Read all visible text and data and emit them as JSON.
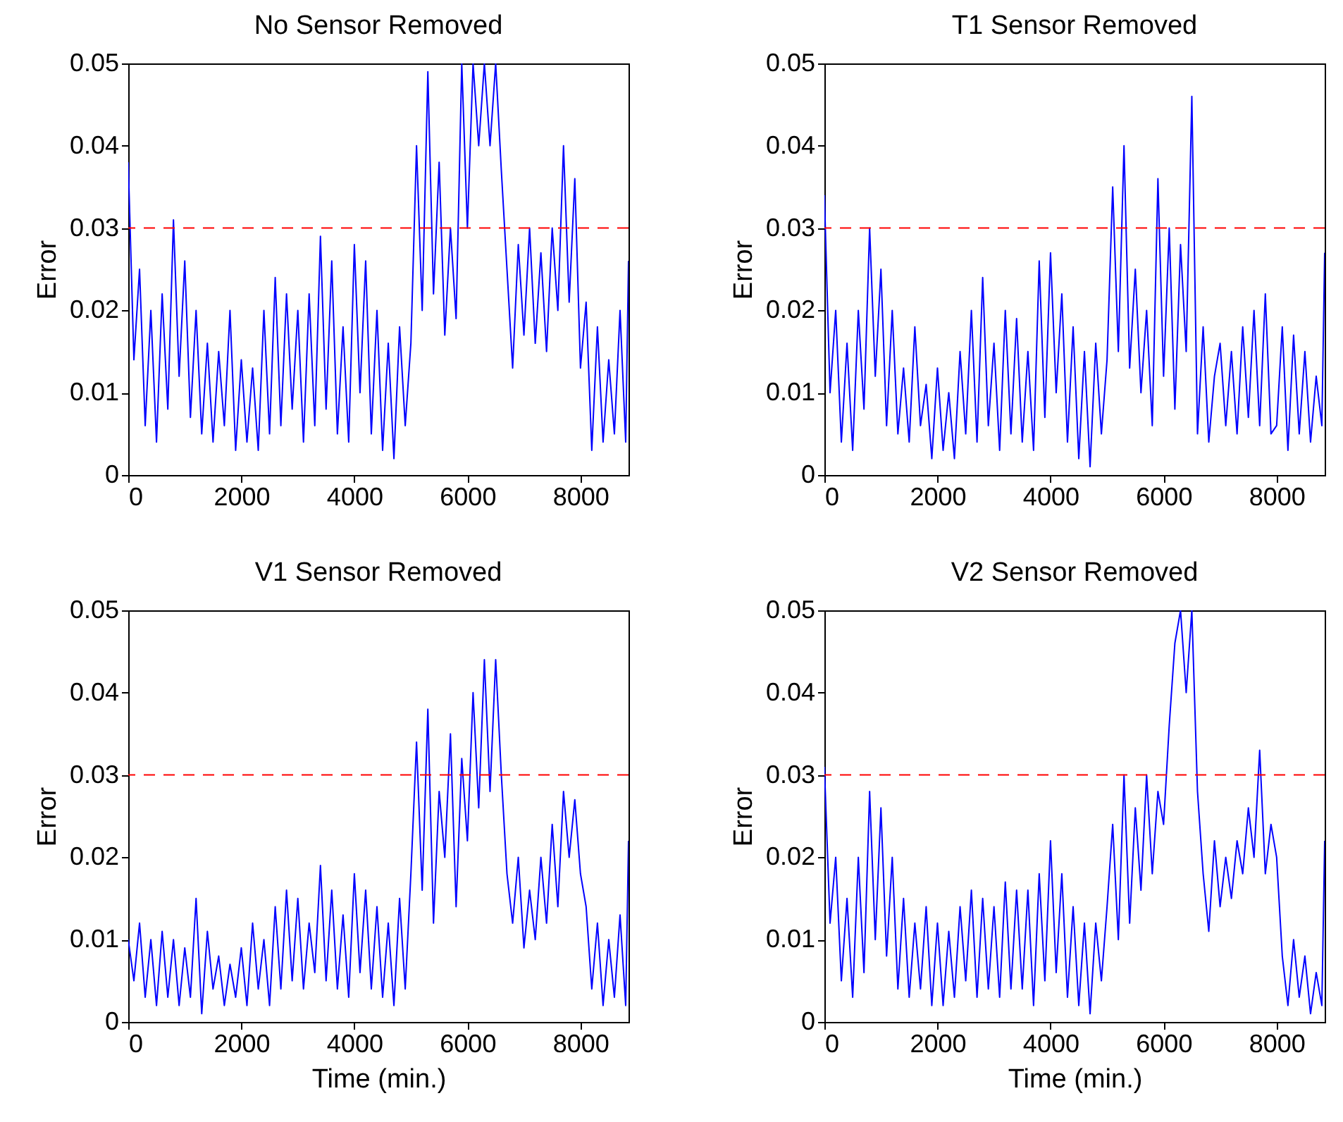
{
  "chart_data": [
    {
      "type": "line",
      "title": "No Sensor Removed",
      "ylabel": "Error",
      "x": [
        0,
        100,
        200,
        300,
        400,
        500,
        600,
        700,
        800,
        900,
        1000,
        1100,
        1200,
        1300,
        1400,
        1500,
        1600,
        1700,
        1800,
        1900,
        2000,
        2100,
        2200,
        2300,
        2400,
        2500,
        2600,
        2700,
        2800,
        2900,
        3000,
        3100,
        3200,
        3300,
        3400,
        3500,
        3600,
        3700,
        3800,
        3900,
        4000,
        4100,
        4200,
        4300,
        4400,
        4500,
        4600,
        4700,
        4800,
        4900,
        5000,
        5100,
        5200,
        5300,
        5400,
        5500,
        5600,
        5700,
        5800,
        5900,
        6000,
        6100,
        6200,
        6300,
        6400,
        6500,
        6600,
        6700,
        6800,
        6900,
        7000,
        7100,
        7200,
        7300,
        7400,
        7500,
        7600,
        7700,
        7800,
        7900,
        8000,
        8100,
        8200,
        8300,
        8400,
        8500,
        8600,
        8700,
        8800,
        8850
      ],
      "series": [
        {
          "color": "#0000ff",
          "values": [
            0.038,
            0.014,
            0.025,
            0.006,
            0.02,
            0.004,
            0.022,
            0.008,
            0.031,
            0.012,
            0.026,
            0.007,
            0.02,
            0.005,
            0.016,
            0.004,
            0.015,
            0.006,
            0.02,
            0.003,
            0.014,
            0.004,
            0.013,
            0.003,
            0.02,
            0.005,
            0.024,
            0.006,
            0.022,
            0.008,
            0.02,
            0.004,
            0.022,
            0.006,
            0.029,
            0.008,
            0.026,
            0.005,
            0.018,
            0.004,
            0.028,
            0.01,
            0.026,
            0.005,
            0.02,
            0.003,
            0.016,
            0.002,
            0.018,
            0.006,
            0.016,
            0.04,
            0.02,
            0.049,
            0.022,
            0.038,
            0.017,
            0.03,
            0.019,
            0.05,
            0.03,
            0.05,
            0.04,
            0.05,
            0.04,
            0.05,
            0.037,
            0.025,
            0.013,
            0.028,
            0.017,
            0.03,
            0.016,
            0.027,
            0.015,
            0.03,
            0.02,
            0.04,
            0.021,
            0.036,
            0.013,
            0.021,
            0.003,
            0.018,
            0.004,
            0.014,
            0.005,
            0.02,
            0.004,
            0.026
          ]
        }
      ],
      "xlim": [
        0,
        8850
      ],
      "ylim": [
        0,
        0.05
      ],
      "xticks": [
        0,
        2000,
        4000,
        6000,
        8000
      ],
      "yticks": [
        0,
        0.01,
        0.02,
        0.03,
        0.04,
        0.05
      ],
      "ref_lines": [
        {
          "axis": "y",
          "value": 0.03,
          "color": "#ff0000",
          "line_style": "dashed"
        }
      ]
    },
    {
      "type": "line",
      "title": "T1 Sensor Removed",
      "ylabel": "Error",
      "x": [
        0,
        100,
        200,
        300,
        400,
        500,
        600,
        700,
        800,
        900,
        1000,
        1100,
        1200,
        1300,
        1400,
        1500,
        1600,
        1700,
        1800,
        1900,
        2000,
        2100,
        2200,
        2300,
        2400,
        2500,
        2600,
        2700,
        2800,
        2900,
        3000,
        3100,
        3200,
        3300,
        3400,
        3500,
        3600,
        3700,
        3800,
        3900,
        4000,
        4100,
        4200,
        4300,
        4400,
        4500,
        4600,
        4700,
        4800,
        4900,
        5000,
        5100,
        5200,
        5300,
        5400,
        5500,
        5600,
        5700,
        5800,
        5900,
        6000,
        6100,
        6200,
        6300,
        6400,
        6500,
        6600,
        6700,
        6800,
        6900,
        7000,
        7100,
        7200,
        7300,
        7400,
        7500,
        7600,
        7700,
        7800,
        7900,
        8000,
        8100,
        8200,
        8300,
        8400,
        8500,
        8600,
        8700,
        8800,
        8850
      ],
      "series": [
        {
          "color": "#0000ff",
          "values": [
            0.034,
            0.01,
            0.02,
            0.004,
            0.016,
            0.003,
            0.02,
            0.008,
            0.03,
            0.012,
            0.025,
            0.006,
            0.02,
            0.005,
            0.013,
            0.004,
            0.018,
            0.006,
            0.011,
            0.002,
            0.013,
            0.003,
            0.01,
            0.002,
            0.015,
            0.005,
            0.02,
            0.004,
            0.024,
            0.006,
            0.016,
            0.003,
            0.02,
            0.005,
            0.019,
            0.004,
            0.015,
            0.003,
            0.026,
            0.007,
            0.027,
            0.01,
            0.022,
            0.004,
            0.018,
            0.002,
            0.015,
            0.001,
            0.016,
            0.005,
            0.014,
            0.035,
            0.015,
            0.04,
            0.013,
            0.025,
            0.01,
            0.02,
            0.006,
            0.036,
            0.012,
            0.03,
            0.008,
            0.028,
            0.015,
            0.046,
            0.005,
            0.018,
            0.004,
            0.012,
            0.016,
            0.006,
            0.015,
            0.005,
            0.018,
            0.007,
            0.02,
            0.006,
            0.022,
            0.005,
            0.006,
            0.018,
            0.003,
            0.017,
            0.005,
            0.015,
            0.004,
            0.012,
            0.006,
            0.027
          ]
        }
      ],
      "xlim": [
        0,
        8850
      ],
      "ylim": [
        0,
        0.05
      ],
      "xticks": [
        0,
        2000,
        4000,
        6000,
        8000
      ],
      "yticks": [
        0,
        0.01,
        0.02,
        0.03,
        0.04,
        0.05
      ],
      "ref_lines": [
        {
          "axis": "y",
          "value": 0.03,
          "color": "#ff0000",
          "line_style": "dashed"
        }
      ]
    },
    {
      "type": "line",
      "title": "V1 Sensor Removed",
      "xlabel": "Time (min.)",
      "ylabel": "Error",
      "x": [
        0,
        100,
        200,
        300,
        400,
        500,
        600,
        700,
        800,
        900,
        1000,
        1100,
        1200,
        1300,
        1400,
        1500,
        1600,
        1700,
        1800,
        1900,
        2000,
        2100,
        2200,
        2300,
        2400,
        2500,
        2600,
        2700,
        2800,
        2900,
        3000,
        3100,
        3200,
        3300,
        3400,
        3500,
        3600,
        3700,
        3800,
        3900,
        4000,
        4100,
        4200,
        4300,
        4400,
        4500,
        4600,
        4700,
        4800,
        4900,
        5000,
        5100,
        5200,
        5300,
        5400,
        5500,
        5600,
        5700,
        5800,
        5900,
        6000,
        6100,
        6200,
        6300,
        6400,
        6500,
        6600,
        6700,
        6800,
        6900,
        7000,
        7100,
        7200,
        7300,
        7400,
        7500,
        7600,
        7700,
        7800,
        7900,
        8000,
        8100,
        8200,
        8300,
        8400,
        8500,
        8600,
        8700,
        8800,
        8850
      ],
      "series": [
        {
          "color": "#0000ff",
          "values": [
            0.01,
            0.005,
            0.012,
            0.003,
            0.01,
            0.002,
            0.011,
            0.003,
            0.01,
            0.002,
            0.009,
            0.003,
            0.015,
            0.001,
            0.011,
            0.004,
            0.008,
            0.002,
            0.007,
            0.003,
            0.009,
            0.002,
            0.012,
            0.004,
            0.01,
            0.002,
            0.014,
            0.004,
            0.016,
            0.005,
            0.015,
            0.004,
            0.012,
            0.006,
            0.019,
            0.005,
            0.016,
            0.004,
            0.013,
            0.003,
            0.018,
            0.006,
            0.016,
            0.004,
            0.014,
            0.003,
            0.012,
            0.002,
            0.015,
            0.004,
            0.018,
            0.034,
            0.016,
            0.038,
            0.012,
            0.028,
            0.02,
            0.035,
            0.014,
            0.032,
            0.022,
            0.04,
            0.026,
            0.044,
            0.028,
            0.044,
            0.03,
            0.018,
            0.012,
            0.02,
            0.009,
            0.016,
            0.01,
            0.02,
            0.012,
            0.024,
            0.014,
            0.028,
            0.02,
            0.027,
            0.018,
            0.014,
            0.004,
            0.012,
            0.002,
            0.01,
            0.003,
            0.013,
            0.002,
            0.022
          ]
        }
      ],
      "xlim": [
        0,
        8850
      ],
      "ylim": [
        0,
        0.05
      ],
      "xticks": [
        0,
        2000,
        4000,
        6000,
        8000
      ],
      "yticks": [
        0,
        0.01,
        0.02,
        0.03,
        0.04,
        0.05
      ],
      "ref_lines": [
        {
          "axis": "y",
          "value": 0.03,
          "color": "#ff0000",
          "line_style": "dashed"
        }
      ]
    },
    {
      "type": "line",
      "title": "V2 Sensor Removed",
      "xlabel": "Time (min.)",
      "ylabel": "Error",
      "x": [
        0,
        100,
        200,
        300,
        400,
        500,
        600,
        700,
        800,
        900,
        1000,
        1100,
        1200,
        1300,
        1400,
        1500,
        1600,
        1700,
        1800,
        1900,
        2000,
        2100,
        2200,
        2300,
        2400,
        2500,
        2600,
        2700,
        2800,
        2900,
        3000,
        3100,
        3200,
        3300,
        3400,
        3500,
        3600,
        3700,
        3800,
        3900,
        4000,
        4100,
        4200,
        4300,
        4400,
        4500,
        4600,
        4700,
        4800,
        4900,
        5000,
        5100,
        5200,
        5300,
        5400,
        5500,
        5600,
        5700,
        5800,
        5900,
        6000,
        6100,
        6200,
        6300,
        6400,
        6500,
        6600,
        6700,
        6800,
        6900,
        7000,
        7100,
        7200,
        7300,
        7400,
        7500,
        7600,
        7700,
        7800,
        7900,
        8000,
        8100,
        8200,
        8300,
        8400,
        8500,
        8600,
        8700,
        8800,
        8850
      ],
      "series": [
        {
          "color": "#0000ff",
          "values": [
            0.031,
            0.012,
            0.02,
            0.005,
            0.015,
            0.003,
            0.02,
            0.006,
            0.028,
            0.01,
            0.026,
            0.008,
            0.02,
            0.004,
            0.015,
            0.003,
            0.012,
            0.004,
            0.014,
            0.002,
            0.012,
            0.002,
            0.011,
            0.003,
            0.014,
            0.005,
            0.016,
            0.003,
            0.015,
            0.004,
            0.014,
            0.003,
            0.017,
            0.004,
            0.016,
            0.004,
            0.016,
            0.002,
            0.018,
            0.005,
            0.022,
            0.006,
            0.018,
            0.003,
            0.014,
            0.002,
            0.012,
            0.001,
            0.012,
            0.005,
            0.014,
            0.024,
            0.01,
            0.03,
            0.012,
            0.026,
            0.016,
            0.03,
            0.018,
            0.028,
            0.024,
            0.036,
            0.046,
            0.05,
            0.04,
            0.05,
            0.028,
            0.018,
            0.011,
            0.022,
            0.014,
            0.02,
            0.015,
            0.022,
            0.018,
            0.026,
            0.02,
            0.033,
            0.018,
            0.024,
            0.02,
            0.008,
            0.002,
            0.01,
            0.003,
            0.008,
            0.001,
            0.006,
            0.002,
            0.022
          ]
        }
      ],
      "xlim": [
        0,
        8850
      ],
      "ylim": [
        0,
        0.05
      ],
      "xticks": [
        0,
        2000,
        4000,
        6000,
        8000
      ],
      "yticks": [
        0,
        0.01,
        0.02,
        0.03,
        0.04,
        0.05
      ],
      "ref_lines": [
        {
          "axis": "y",
          "value": 0.03,
          "color": "#ff0000",
          "line_style": "dashed"
        }
      ]
    }
  ]
}
